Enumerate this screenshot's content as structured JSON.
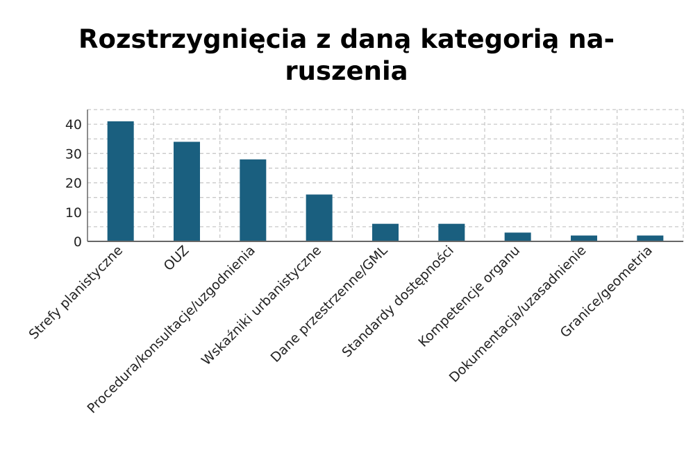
{
  "chart_data": {
    "type": "bar",
    "title_lines": [
      "Rozstrzygnięcia z daną kategorią na-",
      "ruszenia"
    ],
    "categories": [
      "Strefy planistyczne",
      "OUZ",
      "Procedura/konsultacje/uzgodnienia",
      "Wskaźniki urbanistyczne",
      "Dane przestrzenne/GML",
      "Standardy dostępności",
      "Kompetencje organu",
      "Dokumentacja/uzasadnienie",
      "Granice/geometria"
    ],
    "values": [
      41,
      34,
      28,
      16,
      6,
      6,
      3,
      2,
      2
    ],
    "xlabel": "",
    "ylabel": "",
    "ylim": [
      0,
      45
    ],
    "yticks": [
      "0",
      "10",
      "20",
      "30",
      "40"
    ],
    "grid": true,
    "bar_color": "#1a5f7f",
    "grid_color": "#c8c8c8",
    "axis_color": "#666666"
  }
}
